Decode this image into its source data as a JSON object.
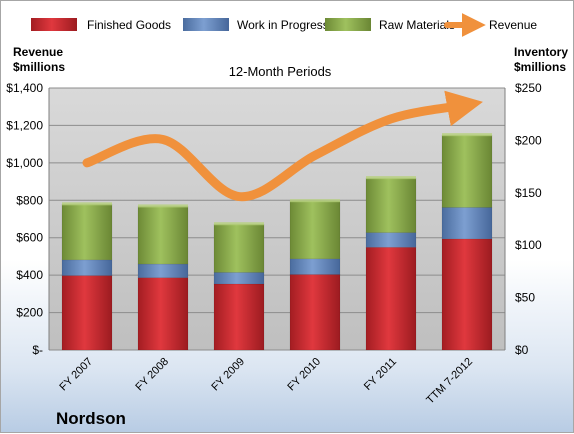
{
  "company": "Nordson",
  "chart_data": {
    "type": "bar",
    "subtitle": "12-Month Periods",
    "categories": [
      "FY 2007",
      "FY 2008",
      "FY 2009",
      "FY 2010",
      "FY 2011",
      "TTM 7-2012"
    ],
    "stacked": true,
    "left_axis": {
      "label_line1": "Revenue",
      "label_line2": "$millions",
      "range": [
        0,
        1400
      ],
      "ticks": [
        "$-",
        "$200",
        "$400",
        "$600",
        "$800",
        "$1,000",
        "$1,200",
        "$1,400"
      ],
      "tick_values": [
        0,
        200,
        400,
        600,
        800,
        1000,
        1200,
        1400
      ]
    },
    "right_axis": {
      "label_line1": "Inventory",
      "label_line2": "$millions",
      "range": [
        0,
        250
      ],
      "ticks": [
        "$0",
        "$50",
        "$100",
        "$150",
        "$200",
        "$250"
      ],
      "tick_values": [
        0,
        50,
        100,
        150,
        200,
        250
      ]
    },
    "series": [
      {
        "name": "Finished Goods",
        "axis": "right",
        "kind": "bar",
        "color": "#c0272d",
        "values": [
          71,
          69,
          63,
          72,
          98,
          106
        ]
      },
      {
        "name": "Work in Progress",
        "axis": "right",
        "kind": "bar",
        "color": "#5a7fb5",
        "values": [
          15,
          13,
          11,
          15,
          14,
          30
        ]
      },
      {
        "name": "Raw Materials",
        "axis": "right",
        "kind": "bar",
        "color": "#86a54a",
        "values": [
          53,
          55,
          46,
          55,
          52,
          69
        ]
      },
      {
        "name": "Revenue",
        "axis": "left",
        "kind": "line",
        "color": "#f0913c",
        "values": [
          1000,
          1125,
          820,
          1040,
          1235,
          1310
        ]
      }
    ],
    "grid": true,
    "legend_position": "top"
  }
}
